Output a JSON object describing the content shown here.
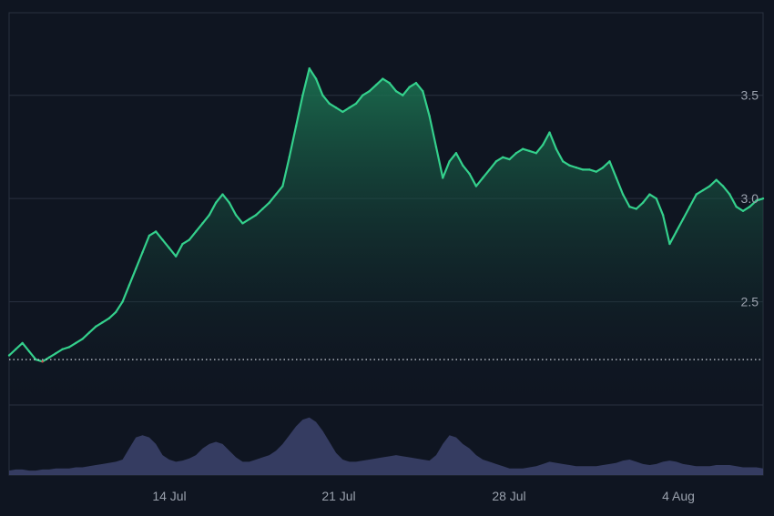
{
  "chart_data": {
    "type": "area",
    "colors": {
      "background": "#0f1521",
      "grid": "#2a3140",
      "up_line": "#34d08c",
      "down_line": "#e0454b",
      "baseline": "#c9ced6",
      "volume": "#3a4068"
    },
    "x_ticks": [
      "14 Jul",
      "21 Jul",
      "28 Jul",
      "4 Aug"
    ],
    "y_ticks": [
      "2.5",
      "3.0",
      "3.5"
    ],
    "ylim": [
      2.0,
      3.9
    ],
    "baseline": 2.22,
    "grid": true,
    "series": [
      {
        "values": [
          2.24,
          2.27,
          2.3,
          2.26,
          2.22,
          2.21,
          2.23,
          2.25,
          2.27,
          2.28,
          2.3,
          2.32,
          2.35,
          2.38,
          2.4,
          2.42,
          2.45,
          2.5,
          2.58,
          2.66,
          2.74,
          2.82,
          2.84,
          2.8,
          2.76,
          2.72,
          2.78,
          2.8,
          2.84,
          2.88,
          2.92,
          2.98,
          3.02,
          2.98,
          2.92,
          2.88,
          2.9,
          2.92,
          2.95,
          2.98,
          3.02,
          3.06,
          3.2,
          3.35,
          3.5,
          3.63,
          3.58,
          3.5,
          3.46,
          3.44,
          3.42,
          3.44,
          3.46,
          3.5,
          3.52,
          3.55,
          3.58,
          3.56,
          3.52,
          3.5,
          3.54,
          3.56,
          3.52,
          3.4,
          3.25,
          3.1,
          3.18,
          3.22,
          3.16,
          3.12,
          3.06,
          3.1,
          3.14,
          3.18,
          3.2,
          3.19,
          3.22,
          3.24,
          3.23,
          3.22,
          3.26,
          3.32,
          3.24,
          3.18,
          3.16,
          3.15,
          3.14,
          3.14,
          3.13,
          3.15,
          3.18,
          3.1,
          3.02,
          2.96,
          2.95,
          2.98,
          3.02,
          3.0,
          2.92,
          2.78,
          2.84,
          2.9,
          2.96,
          3.02,
          3.04,
          3.06,
          3.09,
          3.06,
          3.02,
          2.96,
          2.94,
          2.96,
          2.99,
          3.0
        ]
      }
    ],
    "volume": [
      4,
      5,
      5,
      4,
      4,
      5,
      5,
      6,
      6,
      6,
      7,
      7,
      8,
      9,
      10,
      11,
      12,
      14,
      24,
      34,
      36,
      34,
      28,
      18,
      14,
      12,
      13,
      15,
      18,
      24,
      28,
      30,
      28,
      22,
      16,
      12,
      12,
      14,
      16,
      18,
      22,
      28,
      36,
      44,
      50,
      52,
      48,
      40,
      30,
      20,
      14,
      12,
      12,
      13,
      14,
      15,
      16,
      17,
      18,
      17,
      16,
      15,
      14,
      13,
      18,
      28,
      36,
      34,
      28,
      24,
      18,
      14,
      12,
      10,
      8,
      6,
      6,
      6,
      7,
      8,
      10,
      12,
      11,
      10,
      9,
      8,
      8,
      8,
      8,
      9,
      10,
      11,
      13,
      14,
      12,
      10,
      9,
      10,
      12,
      13,
      12,
      10,
      9,
      8,
      8,
      8,
      9,
      9,
      9,
      8,
      7,
      7,
      7,
      6
    ]
  }
}
